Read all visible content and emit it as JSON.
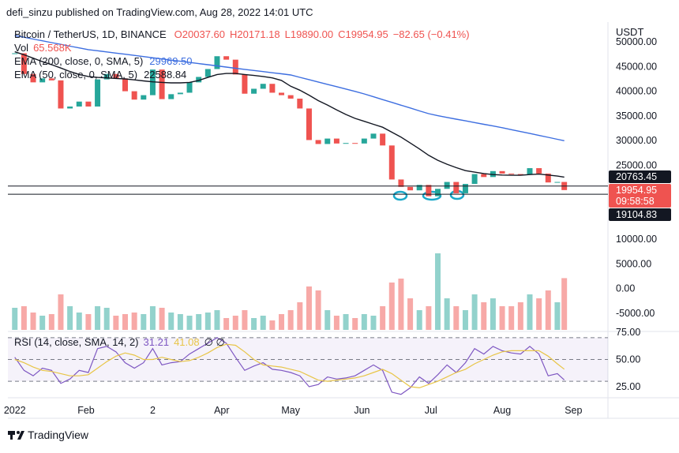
{
  "header": "defi_sinzu published on TradingView.com, Aug 28, 2022 14:01 UTC",
  "footer": "TradingView",
  "chart_data": {
    "type": "candlestick",
    "title": "Bitcoin / TetherUS, 1D, BINANCE",
    "ohlc": [
      "O20037.60",
      "H20171.18",
      "L19890.00",
      "C19954.95",
      "−82.65 (−0.41%)"
    ],
    "axis_unit": "USDT",
    "up_color": "#26a69a",
    "down_color": "#ef5350",
    "x": [
      "2022-01-01",
      "2022-01-05",
      "2022-01-09",
      "2022-01-13",
      "2022-01-17",
      "2022-01-21",
      "2022-01-25",
      "2022-01-29",
      "2022-02-02",
      "2022-02-06",
      "2022-02-10",
      "2022-02-14",
      "2022-02-18",
      "2022-02-22",
      "2022-02-26",
      "2022-03-02",
      "2022-03-06",
      "2022-03-10",
      "2022-03-14",
      "2022-03-18",
      "2022-03-22",
      "2022-03-26",
      "2022-03-30",
      "2022-04-03",
      "2022-04-07",
      "2022-04-11",
      "2022-04-15",
      "2022-04-19",
      "2022-04-23",
      "2022-04-27",
      "2022-05-01",
      "2022-05-05",
      "2022-05-09",
      "2022-05-13",
      "2022-05-17",
      "2022-05-21",
      "2022-05-25",
      "2022-05-29",
      "2022-06-02",
      "2022-06-06",
      "2022-06-10",
      "2022-06-14",
      "2022-06-18",
      "2022-06-22",
      "2022-06-26",
      "2022-06-30",
      "2022-07-04",
      "2022-07-08",
      "2022-07-12",
      "2022-07-16",
      "2022-07-20",
      "2022-07-24",
      "2022-07-28",
      "2022-08-01",
      "2022-08-05",
      "2022-08-09",
      "2022-08-13",
      "2022-08-17",
      "2022-08-21",
      "2022-08-25",
      "2022-08-28"
    ],
    "close": [
      47700,
      43500,
      41800,
      42600,
      42200,
      36500,
      36900,
      37900,
      36900,
      42400,
      43500,
      42600,
      40000,
      38300,
      39200,
      44400,
      38400,
      39400,
      39700,
      41800,
      42900,
      44500,
      47100,
      46400,
      43400,
      39500,
      40500,
      41500,
      39700,
      39200,
      38500,
      36500,
      30100,
      29300,
      30400,
      29400,
      29500,
      29400,
      30400,
      31400,
      29000,
      22100,
      20600,
      19900,
      21000,
      18700,
      20200,
      21600,
      19300,
      21200,
      23200,
      22600,
      23800,
      23300,
      23200,
      23100,
      24400,
      23300,
      21500,
      21600,
      19954.95
    ],
    "series": [
      {
        "name": "EMA (200, close, 0, SMA, 5)",
        "legend_value": "29969.50",
        "color": "#3d6ee0",
        "values": [
          51300,
          50940,
          50580,
          50220,
          49860,
          49500,
          49140,
          48780,
          48440,
          48210,
          47970,
          47730,
          47500,
          47260,
          47020,
          46790,
          46550,
          46310,
          46080,
          45840,
          45600,
          45370,
          45130,
          44890,
          44660,
          44430,
          44210,
          43980,
          43750,
          43530,
          43300,
          42820,
          42350,
          41870,
          41390,
          40920,
          40440,
          39960,
          39460,
          38880,
          38310,
          37740,
          37170,
          36600,
          36020,
          35450,
          35040,
          34690,
          34340,
          33990,
          33650,
          33300,
          32950,
          32600,
          32210,
          31820,
          31430,
          31040,
          30650,
          30260,
          29969.5
        ]
      },
      {
        "name": "EMA (50, close, 0, SMA, 5)",
        "legend_value": "22588.84",
        "color": "#131722",
        "values": [
          48000,
          47400,
          46700,
          46000,
          45400,
          44700,
          44000,
          43400,
          43000,
          42800,
          42700,
          42600,
          42500,
          42300,
          42100,
          41900,
          41800,
          41700,
          41700,
          41800,
          42200,
          42800,
          43400,
          43600,
          43600,
          43400,
          43200,
          43000,
          42700,
          42200,
          41000,
          40200,
          39200,
          38100,
          37200,
          36200,
          35300,
          34500,
          33900,
          33300,
          32700,
          31700,
          30700,
          29500,
          28300,
          27000,
          26000,
          25200,
          24500,
          23900,
          23600,
          23300,
          23100,
          23000,
          22950,
          22950,
          23100,
          23200,
          23000,
          22800,
          22588.84
        ]
      }
    ],
    "volume": {
      "name": "Vol",
      "legend_value": "65.568K",
      "vlim": [
        0,
        100
      ],
      "values": [
        28,
        30,
        22,
        18,
        20,
        45,
        30,
        22,
        20,
        30,
        28,
        18,
        20,
        22,
        20,
        30,
        28,
        22,
        20,
        18,
        20,
        22,
        25,
        15,
        18,
        25,
        15,
        18,
        12,
        20,
        25,
        35,
        55,
        50,
        25,
        18,
        20,
        15,
        20,
        18,
        30,
        60,
        65,
        40,
        25,
        30,
        97,
        40,
        30,
        25,
        45,
        35,
        40,
        30,
        30,
        35,
        45,
        40,
        50,
        35,
        65.568
      ]
    },
    "ylim": [
      -8400,
      53700
    ],
    "yticks": [
      {
        "value": 50000,
        "label": "50000.00"
      },
      {
        "value": 45000,
        "label": "45000.00"
      },
      {
        "value": 40000,
        "label": "40000.00"
      },
      {
        "value": 35000,
        "label": "35000.00"
      },
      {
        "value": 30000,
        "label": "30000.00"
      },
      {
        "value": 25000,
        "label": "25000.00"
      },
      {
        "value": 10000,
        "label": "10000.00"
      },
      {
        "value": 5000,
        "label": "5000.00"
      },
      {
        "value": 0,
        "label": "0.00"
      },
      {
        "value": -5000,
        "label": "-5000.00"
      }
    ],
    "price_tags": [
      {
        "value": 20763.45,
        "label": "20763.45",
        "color": "#131722",
        "line": true
      },
      {
        "value": 19954.95,
        "label": "19954.95",
        "color": "#ef5350",
        "countdown": "09:58:58"
      },
      {
        "value": 19104.83,
        "label": "19104.83",
        "color": "#131722",
        "line": true
      }
    ],
    "xlim": [
      "2021-12-29",
      "2022-09-16"
    ],
    "xticks": [
      {
        "value": "2022-01-01",
        "label": "2022"
      },
      {
        "value": "2022-02-01",
        "label": "Feb"
      },
      {
        "value": "2022-03-02",
        "label": "2"
      },
      {
        "value": "2022-04-01",
        "label": "Apr"
      },
      {
        "value": "2022-05-01",
        "label": "May"
      },
      {
        "value": "2022-06-01",
        "label": "Jun"
      },
      {
        "value": "2022-07-01",
        "label": "Jul"
      },
      {
        "value": "2022-08-01",
        "label": "Aug"
      },
      {
        "value": "2022-09-01",
        "label": "Sep"
      }
    ],
    "rsi": {
      "name": "RSI (14, close, SMA, 14, 2)",
      "null_labels": "∅ ∅",
      "ylim": [
        16.3,
        75.7
      ],
      "levels": [
        70,
        50,
        30
      ],
      "yticks": [
        {
          "value": 75,
          "label": "75.00"
        },
        {
          "value": 50,
          "label": "50.00"
        },
        {
          "value": 25,
          "label": "25.00"
        }
      ],
      "series": [
        {
          "legend_value": "31.21",
          "color": "#7e57c2",
          "values": [
            52,
            40,
            35,
            42,
            40,
            28,
            32,
            40,
            38,
            60,
            62,
            57,
            47,
            42,
            47,
            60,
            45,
            47,
            48,
            55,
            60,
            65,
            70,
            65,
            52,
            40,
            44,
            47,
            41,
            40,
            38,
            35,
            25,
            27,
            34,
            32,
            33,
            35,
            40,
            45,
            40,
            20,
            18,
            24,
            34,
            28,
            36,
            45,
            38,
            47,
            60,
            55,
            62,
            58,
            56,
            55,
            62,
            55,
            35,
            37,
            31.21
          ]
        },
        {
          "legend_value": "41.08",
          "color": "#e8c547",
          "values": [
            50,
            47,
            43,
            40,
            39,
            37,
            35,
            35,
            36,
            42,
            48,
            53,
            56,
            54,
            50,
            50,
            52,
            50,
            48,
            49,
            52,
            56,
            61,
            64,
            63,
            57,
            50,
            45,
            44,
            43,
            41,
            39,
            35,
            31,
            30,
            31,
            32,
            33,
            35,
            38,
            41,
            37,
            31,
            25,
            24,
            27,
            30,
            34,
            38,
            41,
            46,
            50,
            54,
            57,
            58,
            58,
            58,
            58,
            53,
            46,
            41.08
          ]
        }
      ]
    }
  }
}
